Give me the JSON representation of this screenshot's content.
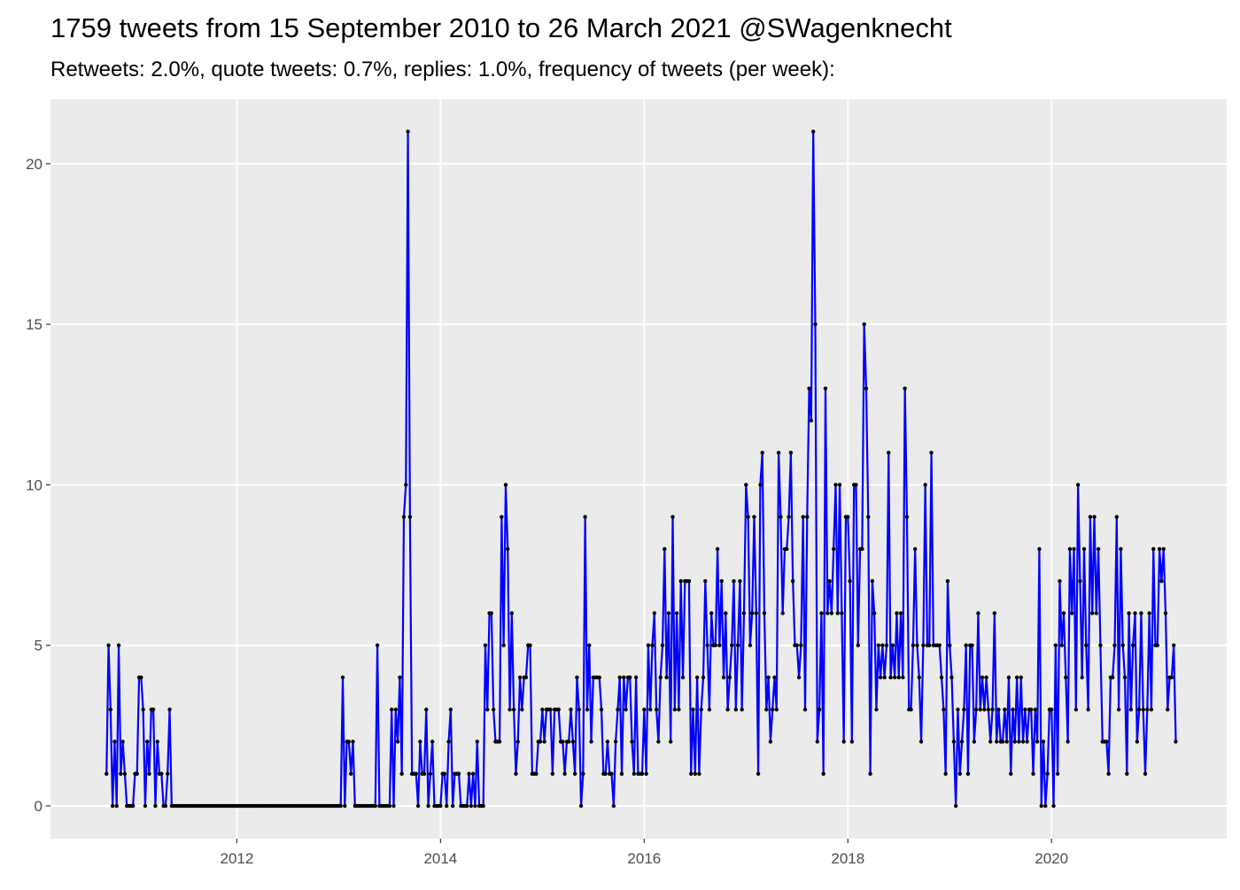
{
  "chart_data": {
    "type": "line",
    "title": "1759 tweets from 15 September 2010 to 26 March 2021 @SWagenknecht",
    "subtitle": "Retweets: 2.0%, quote tweets: 0.7%, replies: 1.0%, frequency of tweets (per week):",
    "x": [
      2010.72,
      2010.74,
      2010.76,
      2010.78,
      2010.8,
      2010.82,
      2010.84,
      2010.86,
      2010.88,
      2010.9,
      2010.92,
      2010.94,
      2010.96,
      2010.98,
      2011.0,
      2011.02,
      2011.04,
      2011.06,
      2011.08,
      2011.1,
      2011.12,
      2011.14,
      2011.16,
      2011.18,
      2011.2,
      2011.22,
      2011.24,
      2011.26,
      2011.28,
      2011.3,
      2011.32,
      2011.34,
      2011.36,
      2011.38,
      2011.4,
      2011.42,
      2011.44,
      2011.46,
      2011.48,
      2011.5,
      2011.52,
      2011.54,
      2011.56,
      2011.58,
      2011.6,
      2011.62,
      2011.64,
      2011.66,
      2011.68,
      2011.7,
      2011.72,
      2011.74,
      2011.76,
      2011.78,
      2011.8,
      2011.82,
      2011.84,
      2011.86,
      2011.88,
      2011.9,
      2011.92,
      2011.94,
      2011.96,
      2011.98,
      2012.0,
      2012.02,
      2012.04,
      2012.06,
      2012.08,
      2012.1,
      2012.12,
      2012.14,
      2012.16,
      2012.18,
      2012.2,
      2012.22,
      2012.24,
      2012.26,
      2012.28,
      2012.3,
      2012.32,
      2012.34,
      2012.36,
      2012.38,
      2012.4,
      2012.42,
      2012.44,
      2012.46,
      2012.48,
      2012.5,
      2012.52,
      2012.54,
      2012.56,
      2012.58,
      2012.6,
      2012.62,
      2012.64,
      2012.66,
      2012.68,
      2012.7,
      2012.72,
      2012.74,
      2012.76,
      2012.78,
      2012.8,
      2012.82,
      2012.84,
      2012.86,
      2012.88,
      2012.9,
      2012.92,
      2012.94,
      2012.96,
      2012.98,
      2013.0,
      2013.02,
      2013.04,
      2013.06,
      2013.08,
      2013.1,
      2013.12,
      2013.14,
      2013.16,
      2013.18,
      2013.2,
      2013.22,
      2013.24,
      2013.26,
      2013.28,
      2013.3,
      2013.32,
      2013.34,
      2013.36,
      2013.38,
      2013.4,
      2013.42,
      2013.44,
      2013.46,
      2013.48,
      2013.5,
      2013.52,
      2013.54,
      2013.56,
      2013.58,
      2013.6,
      2013.62,
      2013.64,
      2013.66,
      2013.68,
      2013.7,
      2013.72,
      2013.74,
      2013.76,
      2013.78,
      2013.8,
      2013.82,
      2013.84,
      2013.86,
      2013.88,
      2013.9,
      2013.92,
      2013.94,
      2013.96,
      2013.98,
      2014.0,
      2014.02,
      2014.04,
      2014.06,
      2014.08,
      2014.1,
      2014.12,
      2014.14,
      2014.16,
      2014.18,
      2014.2,
      2014.22,
      2014.24,
      2014.26,
      2014.28,
      2014.3,
      2014.32,
      2014.34,
      2014.36,
      2014.38,
      2014.4,
      2014.42,
      2014.44,
      2014.46,
      2014.48,
      2014.5,
      2014.52,
      2014.54,
      2014.56,
      2014.58,
      2014.6,
      2014.62,
      2014.64,
      2014.66,
      2014.68,
      2014.7,
      2014.72,
      2014.74,
      2014.76,
      2014.78,
      2014.8,
      2014.82,
      2014.84,
      2014.86,
      2014.88,
      2014.9,
      2014.92,
      2014.94,
      2014.96,
      2014.98,
      2015.0,
      2015.02,
      2015.04,
      2015.06,
      2015.08,
      2015.1,
      2015.12,
      2015.14,
      2015.16,
      2015.18,
      2015.2,
      2015.22,
      2015.24,
      2015.26,
      2015.28,
      2015.3,
      2015.32,
      2015.34,
      2015.36,
      2015.38,
      2015.4,
      2015.42,
      2015.44,
      2015.46,
      2015.48,
      2015.5,
      2015.52,
      2015.54,
      2015.56,
      2015.58,
      2015.6,
      2015.62,
      2015.64,
      2015.66,
      2015.68,
      2015.7,
      2015.72,
      2015.74,
      2015.76,
      2015.78,
      2015.8,
      2015.82,
      2015.84,
      2015.86,
      2015.88,
      2015.9,
      2015.92,
      2015.94,
      2015.96,
      2015.98,
      2016.0,
      2016.02,
      2016.04,
      2016.06,
      2016.08,
      2016.1,
      2016.12,
      2016.14,
      2016.16,
      2016.18,
      2016.2,
      2016.22,
      2016.24,
      2016.26,
      2016.28,
      2016.3,
      2016.32,
      2016.34,
      2016.36,
      2016.38,
      2016.4,
      2016.42,
      2016.44,
      2016.46,
      2016.48,
      2016.5,
      2016.52,
      2016.54,
      2016.56,
      2016.58,
      2016.6,
      2016.62,
      2016.64,
      2016.66,
      2016.68,
      2016.7,
      2016.72,
      2016.74,
      2016.76,
      2016.78,
      2016.8,
      2016.82,
      2016.84,
      2016.86,
      2016.88,
      2016.9,
      2016.92,
      2016.94,
      2016.96,
      2016.98,
      2017.0,
      2017.02,
      2017.04,
      2017.06,
      2017.08,
      2017.1,
      2017.12,
      2017.14,
      2017.16,
      2017.18,
      2017.2,
      2017.22,
      2017.24,
      2017.26,
      2017.28,
      2017.3,
      2017.32,
      2017.34,
      2017.36,
      2017.38,
      2017.4,
      2017.42,
      2017.44,
      2017.46,
      2017.48,
      2017.5,
      2017.52,
      2017.54,
      2017.56,
      2017.58,
      2017.6,
      2017.62,
      2017.64,
      2017.66,
      2017.68,
      2017.7,
      2017.72,
      2017.74,
      2017.76,
      2017.78,
      2017.8,
      2017.82,
      2017.84,
      2017.86,
      2017.88,
      2017.9,
      2017.92,
      2017.94,
      2017.96,
      2017.98,
      2018.0,
      2018.02,
      2018.04,
      2018.06,
      2018.08,
      2018.1,
      2018.12,
      2018.14,
      2018.16,
      2018.18,
      2018.2,
      2018.22,
      2018.24,
      2018.26,
      2018.28,
      2018.3,
      2018.32,
      2018.34,
      2018.36,
      2018.38,
      2018.4,
      2018.42,
      2018.44,
      2018.46,
      2018.48,
      2018.5,
      2018.52,
      2018.54,
      2018.56,
      2018.58,
      2018.6,
      2018.62,
      2018.64,
      2018.66,
      2018.68,
      2018.7,
      2018.72,
      2018.74,
      2018.76,
      2018.78,
      2018.8,
      2018.82,
      2018.84,
      2018.86,
      2018.88,
      2018.9,
      2018.92,
      2018.94,
      2018.96,
      2018.98,
      2019.0,
      2019.02,
      2019.04,
      2019.06,
      2019.08,
      2019.1,
      2019.12,
      2019.14,
      2019.16,
      2019.18,
      2019.2,
      2019.22,
      2019.24,
      2019.26,
      2019.28,
      2019.3,
      2019.32,
      2019.34,
      2019.36,
      2019.38,
      2019.4,
      2019.42,
      2019.44,
      2019.46,
      2019.48,
      2019.5,
      2019.52,
      2019.54,
      2019.56,
      2019.58,
      2019.6,
      2019.62,
      2019.64,
      2019.66,
      2019.68,
      2019.7,
      2019.72,
      2019.74,
      2019.76,
      2019.78,
      2019.8,
      2019.82,
      2019.84,
      2019.86,
      2019.88,
      2019.9,
      2019.92,
      2019.94,
      2019.96,
      2019.98,
      2020.0,
      2020.02,
      2020.04,
      2020.06,
      2020.08,
      2020.1,
      2020.12,
      2020.14,
      2020.16,
      2020.18,
      2020.2,
      2020.22,
      2020.24,
      2020.26,
      2020.28,
      2020.3,
      2020.32,
      2020.34,
      2020.36,
      2020.38,
      2020.4,
      2020.42,
      2020.44,
      2020.46,
      2020.48,
      2020.5,
      2020.52,
      2020.54,
      2020.56,
      2020.58,
      2020.6,
      2020.62,
      2020.64,
      2020.66,
      2020.68,
      2020.7,
      2020.72,
      2020.74,
      2020.76,
      2020.78,
      2020.8,
      2020.82,
      2020.84,
      2020.86,
      2020.88,
      2020.9,
      2020.92,
      2020.94,
      2020.96,
      2020.98,
      2021.0,
      2021.02,
      2021.04,
      2021.06,
      2021.08,
      2021.1,
      2021.12,
      2021.14,
      2021.16,
      2021.18,
      2021.2,
      2021.22
    ],
    "series": [
      {
        "color": "#0000ff",
        "marker_color": "#000000",
        "values": [
          1,
          5,
          3,
          0,
          2,
          0,
          5,
          1,
          2,
          1,
          0,
          0,
          0,
          0,
          1,
          1,
          4,
          4,
          3,
          0,
          2,
          1,
          3,
          3,
          0,
          2,
          1,
          1,
          0,
          0,
          1,
          3,
          0,
          0,
          0,
          0,
          0,
          0,
          0,
          0,
          0,
          0,
          0,
          0,
          0,
          0,
          0,
          0,
          0,
          0,
          0,
          0,
          0,
          0,
          0,
          0,
          0,
          0,
          0,
          0,
          0,
          0,
          0,
          0,
          0,
          0,
          0,
          0,
          0,
          0,
          0,
          0,
          0,
          0,
          0,
          0,
          0,
          0,
          0,
          0,
          0,
          0,
          0,
          0,
          0,
          0,
          0,
          0,
          0,
          0,
          0,
          0,
          0,
          0,
          0,
          0,
          0,
          0,
          0,
          0,
          0,
          0,
          0,
          0,
          0,
          0,
          0,
          0,
          0,
          0,
          0,
          0,
          0,
          0,
          0,
          0,
          4,
          0,
          2,
          2,
          1,
          2,
          0,
          0,
          0,
          0,
          0,
          0,
          0,
          0,
          0,
          0,
          0,
          5,
          0,
          0,
          0,
          0,
          0,
          0,
          3,
          0,
          3,
          2,
          4,
          1,
          9,
          10,
          21,
          9,
          1,
          1,
          1,
          0,
          2,
          1,
          1,
          3,
          0,
          1,
          2,
          0,
          0,
          0,
          0,
          1,
          1,
          0,
          2,
          3,
          0,
          1,
          1,
          1,
          0,
          0,
          0,
          0,
          1,
          0,
          1,
          0,
          2,
          0,
          0,
          0,
          5,
          3,
          6,
          6,
          3,
          2,
          2,
          2,
          9,
          5,
          10,
          8,
          3,
          6,
          3,
          1,
          2,
          4,
          3,
          4,
          4,
          5,
          5,
          1,
          1,
          1,
          2,
          2,
          3,
          2,
          3,
          3,
          3,
          1,
          3,
          3,
          3,
          2,
          2,
          1,
          2,
          2,
          3,
          2,
          1,
          4,
          3,
          0,
          1,
          9,
          3,
          5,
          2,
          4,
          4,
          4,
          4,
          3,
          1,
          1,
          2,
          1,
          1,
          0,
          2,
          3,
          4,
          1,
          4,
          3,
          4,
          4,
          2,
          1,
          4,
          1,
          1,
          1,
          3,
          1,
          5,
          3,
          5,
          6,
          3,
          2,
          4,
          5,
          8,
          4,
          6,
          2,
          9,
          3,
          6,
          3,
          7,
          4,
          7,
          7,
          7,
          1,
          3,
          1,
          4,
          1,
          3,
          4,
          7,
          5,
          3,
          6,
          5,
          5,
          8,
          5,
          7,
          4,
          6,
          3,
          4,
          5,
          7,
          3,
          5,
          7,
          3,
          6,
          10,
          9,
          5,
          6,
          9,
          6,
          1,
          10,
          11,
          6,
          3,
          4,
          2,
          3,
          4,
          3,
          11,
          9,
          6,
          8,
          8,
          9,
          11,
          7,
          5,
          5,
          4,
          5,
          9,
          3,
          9,
          13,
          12,
          21,
          15,
          2,
          3,
          6,
          1,
          13,
          6,
          7,
          6,
          8,
          10,
          6,
          10,
          6,
          2,
          9,
          9,
          7,
          2,
          10,
          10,
          5,
          8,
          8,
          15,
          13,
          9,
          1,
          7,
          6,
          3,
          5,
          4,
          5,
          4,
          5,
          11,
          4,
          5,
          4,
          6,
          4,
          6,
          4,
          13,
          9,
          3,
          3,
          5,
          8,
          5,
          4,
          2,
          5,
          10,
          5,
          5,
          11,
          5,
          5,
          5,
          5,
          4,
          3,
          1,
          7,
          5,
          4,
          2,
          0,
          3,
          1,
          2,
          3,
          5,
          1,
          5,
          5,
          2,
          3,
          6,
          3,
          4,
          3,
          4,
          3,
          2,
          3,
          6,
          2,
          3,
          2,
          2,
          3,
          2,
          4,
          1,
          3,
          2,
          4,
          2,
          4,
          2,
          3,
          2,
          3,
          3,
          1,
          3,
          2,
          8,
          0,
          2,
          0,
          1,
          3,
          3,
          0,
          5,
          1,
          7,
          5,
          6,
          4,
          2,
          8,
          6,
          8,
          3,
          10,
          7,
          4,
          8,
          5,
          3,
          9,
          6,
          9,
          6,
          8,
          5,
          2,
          2,
          2,
          1,
          4,
          4,
          5,
          9,
          3,
          8,
          5,
          4,
          1,
          6,
          3,
          5,
          6,
          2,
          3,
          6,
          3,
          1,
          3,
          6,
          3,
          8,
          5,
          5,
          8,
          7,
          8,
          6,
          3,
          4,
          4,
          5,
          2
        ]
      }
    ],
    "xlim": [
      2010.17,
      2021.72
    ],
    "ylim": [
      -1.02,
      22.01
    ],
    "xticks": [
      2012,
      2014,
      2016,
      2018,
      2020
    ],
    "yticks": [
      0,
      5,
      10,
      15,
      20
    ],
    "grid": true
  }
}
